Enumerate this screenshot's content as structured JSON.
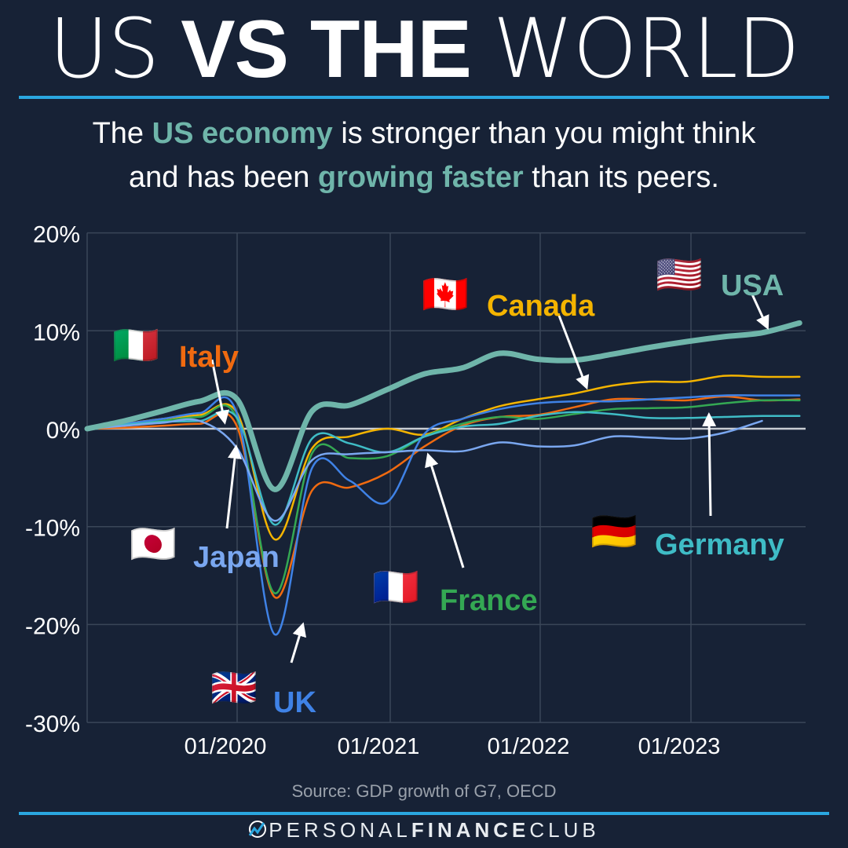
{
  "header": {
    "title_parts": [
      "US",
      "VS THE",
      "WORLD"
    ],
    "subtitle_line1": [
      "The ",
      "US economy",
      " is stronger than you might think"
    ],
    "subtitle_line2": [
      "and has been ",
      "growing faster",
      " than its peers."
    ]
  },
  "footer": {
    "source": "Source: GDP growth of G7, OECD",
    "brand_light1": "PERSONAL",
    "brand_bold": "FINANCE",
    "brand_light2": "CLUB"
  },
  "colors": {
    "background": "#172236",
    "accent_rule": "#2aa7e0",
    "highlight": "#6fb5aa",
    "grid": "#3a4658",
    "zero_line": "#c8ccd2"
  },
  "chart_data": {
    "type": "line",
    "title": "US VS THE WORLD",
    "subtitle": "The US economy is stronger than you might think and has been growing faster than its peers.",
    "xlabel": "",
    "ylabel": "",
    "ylim": [
      -30,
      20
    ],
    "yticks": [
      "20%",
      "10%",
      "0%",
      "-10%",
      "-20%",
      "-30%"
    ],
    "xticks": [
      "01/2020",
      "01/2021",
      "01/2022",
      "01/2023"
    ],
    "grid": true,
    "x": [
      "2019-Q1",
      "2019-Q2",
      "2019-Q3",
      "2019-Q4",
      "2020-Q1",
      "2020-Q2",
      "2020-Q3",
      "2020-Q4",
      "2021-Q1",
      "2021-Q2",
      "2021-Q3",
      "2021-Q4",
      "2022-Q1",
      "2022-Q2",
      "2022-Q3",
      "2022-Q4",
      "2023-Q1",
      "2023-Q2",
      "2023-Q3",
      "2023-Q4"
    ],
    "series": [
      {
        "name": "USA",
        "color": "#6fb5aa",
        "width": 7,
        "values": [
          0,
          0.8,
          1.8,
          2.8,
          3.0,
          -6.2,
          1.8,
          2.4,
          4.0,
          5.6,
          6.2,
          7.7,
          7.1,
          7.0,
          7.6,
          8.3,
          8.9,
          9.4,
          9.8,
          10.8
        ]
      },
      {
        "name": "Canada",
        "color": "#f4b400",
        "width": 2.5,
        "values": [
          0,
          0.5,
          1.0,
          1.4,
          1.6,
          -11.3,
          -2.0,
          -0.8,
          0.0,
          -0.6,
          1.0,
          2.3,
          3.0,
          3.6,
          4.4,
          4.8,
          4.8,
          5.4,
          5.3,
          5.3
        ]
      },
      {
        "name": "Italy",
        "color": "#f06a10",
        "width": 2.5,
        "values": [
          0,
          0.1,
          0.3,
          0.5,
          0.2,
          -17.2,
          -6.3,
          -6.0,
          -4.5,
          -1.8,
          0.3,
          1.2,
          1.4,
          2.2,
          3.0,
          3.0,
          2.9,
          3.3,
          2.9,
          3.0
        ]
      },
      {
        "name": "France",
        "color": "#34a853",
        "width": 2.5,
        "values": [
          0,
          0.4,
          0.8,
          1.2,
          1.0,
          -16.8,
          -2.5,
          -3.0,
          -2.8,
          -0.8,
          0.5,
          1.2,
          1.0,
          1.5,
          2.0,
          2.1,
          2.2,
          2.6,
          2.9,
          2.9
        ]
      },
      {
        "name": "UK",
        "color": "#3f82e6",
        "width": 2.5,
        "values": [
          0,
          0.5,
          1.0,
          1.6,
          1.5,
          -21.0,
          -4.0,
          -5.3,
          -7.5,
          -0.5,
          1.0,
          2.0,
          2.6,
          2.8,
          2.8,
          3.0,
          3.2,
          3.4,
          3.4,
          3.4
        ]
      },
      {
        "name": "Germany",
        "color": "#3fbcc6",
        "width": 2.5,
        "values": [
          0,
          0.4,
          0.7,
          0.8,
          1.1,
          -9.8,
          -1.0,
          -1.5,
          -2.4,
          -0.8,
          0.2,
          0.5,
          1.3,
          1.7,
          1.5,
          1.1,
          1.1,
          1.2,
          1.3,
          1.3
        ]
      },
      {
        "name": "Japan",
        "color": "#7aa7f0",
        "width": 2.5,
        "values": [
          0,
          0.3,
          0.6,
          0.8,
          -2.0,
          -9.4,
          -3.2,
          -2.6,
          -2.4,
          -2.2,
          -2.3,
          -1.4,
          -1.8,
          -1.7,
          -0.8,
          -0.9,
          -1.0,
          -0.4,
          0.8,
          null
        ]
      }
    ],
    "annotations": [
      {
        "label": "USA",
        "flag": "🇺🇸",
        "color": "#6fb5aa"
      },
      {
        "label": "Canada",
        "flag": "🇨🇦",
        "color": "#f4b400"
      },
      {
        "label": "Italy",
        "flag": "🇮🇹",
        "color": "#f06a10"
      },
      {
        "label": "Japan",
        "flag": "🇯🇵",
        "color": "#7aa7f0"
      },
      {
        "label": "UK",
        "flag": "🇬🇧",
        "color": "#3f82e6"
      },
      {
        "label": "France",
        "flag": "🇫🇷",
        "color": "#34a853"
      },
      {
        "label": "Germany",
        "flag": "🇩🇪",
        "color": "#3fbcc6"
      }
    ]
  }
}
